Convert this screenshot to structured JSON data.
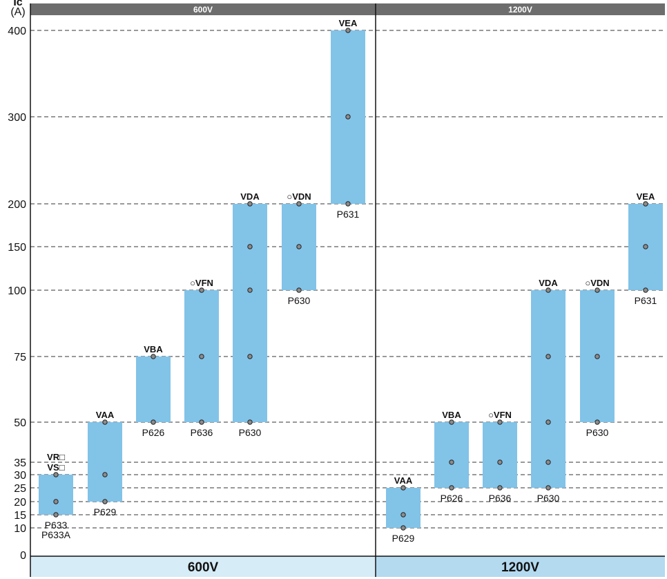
{
  "chart_data": {
    "type": "bar",
    "y_axis_label": "Ic",
    "y_axis_unit": "(A)",
    "y_ticks": [
      0,
      10,
      15,
      20,
      25,
      30,
      35,
      50,
      75,
      100,
      150,
      200,
      300,
      400
    ],
    "grid_dashed": true,
    "colors": {
      "bar": "#82c3e8",
      "header": "#6d6d6d",
      "footer_left": "#d6ecf7",
      "footer_right": "#b4daf0",
      "dot": "#8c8c8c"
    },
    "panels": [
      {
        "header": "600V",
        "footer": "600V",
        "bars": [
          {
            "model": "VR□\nVS□",
            "min": 15,
            "max": 30,
            "points": [
              15,
              20,
              30
            ],
            "parts": [
              "P633",
              "P633A"
            ]
          },
          {
            "model": "VAA",
            "min": 20,
            "max": 50,
            "points": [
              20,
              30,
              50
            ],
            "parts": [
              "P629"
            ]
          },
          {
            "model": "VBA",
            "min": 50,
            "max": 75,
            "points": [
              50,
              75
            ],
            "parts": [
              "P626"
            ]
          },
          {
            "model": "○VFN",
            "min": 50,
            "max": 100,
            "points": [
              50,
              75,
              100
            ],
            "parts": [
              "P636"
            ]
          },
          {
            "model": "VDA",
            "min": 50,
            "max": 200,
            "points": [
              50,
              75,
              100,
              150,
              200
            ],
            "parts": [
              "P630"
            ]
          },
          {
            "model": "○VDN",
            "min": 100,
            "max": 200,
            "points": [
              100,
              150,
              200
            ],
            "parts": [
              "P630"
            ]
          },
          {
            "model": "VEA",
            "min": 200,
            "max": 400,
            "points": [
              200,
              300,
              400
            ],
            "parts": [
              "P631"
            ]
          }
        ]
      },
      {
        "header": "1200V",
        "footer": "1200V",
        "bars": [
          {
            "model": "VAA",
            "min": 10,
            "max": 25,
            "points": [
              10,
              15,
              25
            ],
            "parts": [
              "P629"
            ]
          },
          {
            "model": "VBA",
            "min": 25,
            "max": 50,
            "points": [
              25,
              35,
              50
            ],
            "parts": [
              "P626"
            ]
          },
          {
            "model": "○VFN",
            "min": 25,
            "max": 50,
            "points": [
              25,
              35,
              50
            ],
            "parts": [
              "P636"
            ]
          },
          {
            "model": "VDA",
            "min": 25,
            "max": 100,
            "points": [
              25,
              35,
              50,
              75,
              100
            ],
            "parts": [
              "P630"
            ]
          },
          {
            "model": "○VDN",
            "min": 50,
            "max": 100,
            "points": [
              50,
              75,
              100
            ],
            "parts": [
              "P630"
            ]
          },
          {
            "model": "VEA",
            "min": 100,
            "max": 200,
            "points": [
              100,
              150,
              200
            ],
            "parts": [
              "P631"
            ]
          }
        ]
      }
    ]
  }
}
